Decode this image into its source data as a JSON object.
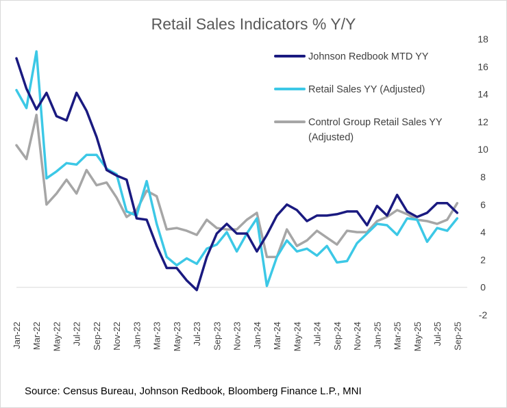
{
  "chart_data": {
    "type": "line",
    "title": "Retail Sales Indicators % Y/Y",
    "xlabel": "",
    "ylabel": "",
    "ylim": [
      -2,
      18
    ],
    "yticks": [
      -2,
      0,
      2,
      4,
      6,
      8,
      10,
      12,
      14,
      16,
      18
    ],
    "y_axis_side": "right",
    "grid": false,
    "legend_position": "top-right",
    "x_tick_labels": [
      "Jan-22",
      "Mar-22",
      "May-22",
      "Jul-22",
      "Sep-22",
      "Nov-22",
      "Jan-23",
      "Mar-23",
      "May-23",
      "Jul-23",
      "Sep-23",
      "Nov-23",
      "Jan-24",
      "Mar-24",
      "May-24",
      "Jul-24",
      "Sep-24",
      "Nov-24",
      "Jan-25",
      "Mar-25",
      "May-25",
      "Jul-25",
      "Sep-25"
    ],
    "x": [
      "Jan-22",
      "Feb-22",
      "Mar-22",
      "Apr-22",
      "May-22",
      "Jun-22",
      "Jul-22",
      "Aug-22",
      "Sep-22",
      "Oct-22",
      "Nov-22",
      "Dec-22",
      "Jan-23",
      "Feb-23",
      "Mar-23",
      "Apr-23",
      "May-23",
      "Jun-23",
      "Jul-23",
      "Aug-23",
      "Sep-23",
      "Oct-23",
      "Nov-23",
      "Dec-23",
      "Jan-24",
      "Feb-24",
      "Mar-24",
      "Apr-24",
      "May-24",
      "Jun-24",
      "Jul-24",
      "Aug-24",
      "Sep-24",
      "Oct-24",
      "Nov-24",
      "Dec-24",
      "Jan-25",
      "Feb-25",
      "Mar-25",
      "Apr-25",
      "May-25",
      "Jun-25",
      "Jul-25",
      "Aug-25",
      "Sep-25",
      "Oct-25"
    ],
    "series": [
      {
        "name": "Johnson Redbook MTD YY",
        "color": "#1a1a80",
        "values": [
          16.6,
          14.4,
          12.9,
          14.1,
          12.4,
          12.1,
          14.1,
          12.8,
          10.9,
          8.5,
          8.1,
          7.8,
          5.0,
          4.9,
          3.0,
          1.4,
          1.4,
          0.5,
          -0.2,
          2.2,
          3.9,
          4.6,
          3.9,
          3.9,
          2.6,
          3.8,
          5.2,
          6.0,
          5.6,
          4.8,
          5.2,
          5.2,
          5.3,
          5.5,
          5.5,
          4.5,
          5.9,
          5.2,
          6.7,
          5.5,
          5.1,
          5.4,
          6.1,
          6.1,
          5.4,
          null
        ]
      },
      {
        "name": "Retail Sales YY (Adjusted)",
        "color": "#3cc8e6",
        "values": [
          14.3,
          13.0,
          17.1,
          7.9,
          8.4,
          9.0,
          8.9,
          9.6,
          9.6,
          8.6,
          8.2,
          5.5,
          5.2,
          7.7,
          4.6,
          2.2,
          1.6,
          2.1,
          1.7,
          2.8,
          3.1,
          4.0,
          2.6,
          3.9,
          5.0,
          0.1,
          2.2,
          3.4,
          2.6,
          2.8,
          2.3,
          3.0,
          1.8,
          1.9,
          3.2,
          3.9,
          4.6,
          4.5,
          3.8,
          5.0,
          4.9,
          3.3,
          4.3,
          4.1,
          5.0,
          null
        ]
      },
      {
        "name": "Control Group Retail Sales YY (Adjusted)",
        "color": "#a6a6a6",
        "values": [
          10.3,
          9.3,
          12.5,
          6.0,
          6.8,
          7.8,
          6.8,
          8.5,
          7.4,
          7.6,
          6.5,
          5.1,
          5.6,
          7.0,
          6.6,
          4.2,
          4.3,
          4.1,
          3.8,
          4.9,
          4.3,
          4.2,
          4.2,
          4.9,
          5.4,
          2.2,
          2.2,
          4.2,
          3.0,
          3.4,
          4.1,
          3.6,
          3.1,
          4.1,
          4.0,
          4.0,
          4.8,
          5.1,
          5.6,
          5.3,
          4.9,
          4.8,
          4.6,
          4.9,
          6.1,
          null
        ]
      }
    ],
    "source": "Source: Census Bureau, Johnson Redbook, Bloomberg Finance L.P., MNI"
  }
}
